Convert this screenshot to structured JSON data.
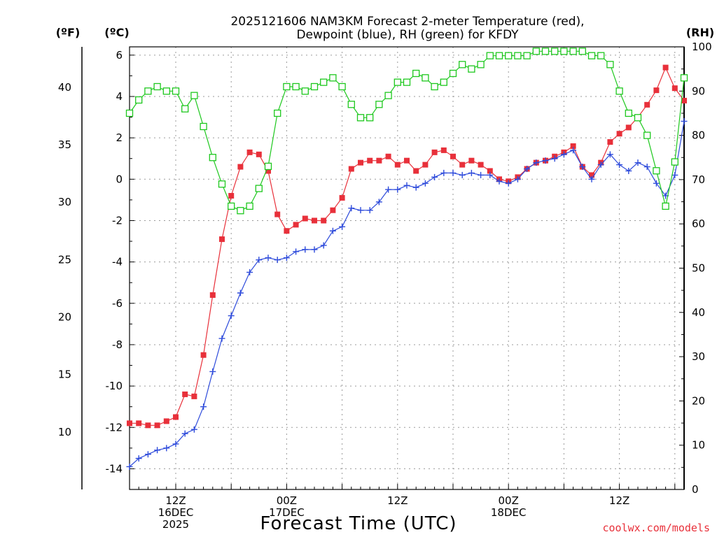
{
  "chart_data": {
    "type": "line",
    "title_line1": "2025121606 NAM3KM Forecast 2-meter Temperature (red),",
    "title_line2": "Dewpoint (blue), RH (green) for KFDY",
    "unit_f": "(ºF)",
    "unit_c": "(ºC)",
    "unit_rh": "(RH)",
    "xlabel": "Forecast Time (UTC)",
    "credit": "coolwx.com/models",
    "x_range_hours": [
      7,
      67
    ],
    "ylim_c": [
      -15,
      6.4
    ],
    "ylim_rh": [
      0,
      100
    ],
    "ylim_f": [
      5,
      43.5
    ],
    "yticks_c": [
      -14,
      -12,
      -10,
      -8,
      -6,
      -4,
      -2,
      0,
      2,
      4,
      6
    ],
    "yticks_f": [
      10,
      15,
      20,
      25,
      30,
      35,
      40
    ],
    "yticks_rh": [
      0,
      10,
      20,
      30,
      40,
      50,
      60,
      70,
      80,
      90,
      100
    ],
    "xticks": [
      {
        "hour": 12,
        "lines": [
          "12Z",
          "16DEC",
          "2025"
        ]
      },
      {
        "hour": 24,
        "lines": [
          "00Z",
          "17DEC"
        ]
      },
      {
        "hour": 36,
        "lines": [
          "12Z"
        ]
      },
      {
        "hour": 48,
        "lines": [
          "00Z",
          "18DEC"
        ]
      },
      {
        "hour": 60,
        "lines": [
          "12Z"
        ]
      }
    ],
    "grid": true,
    "series": [
      {
        "name": "Temperature",
        "units": "degC",
        "color": "#e8303a",
        "marker": "filled-square",
        "start_hour": 7,
        "step_hours": 1,
        "values": [
          -11.8,
          -11.8,
          -11.9,
          -11.9,
          -11.7,
          -11.5,
          -10.4,
          -10.5,
          -8.5,
          -5.6,
          -2.9,
          -0.8,
          0.6,
          1.3,
          1.2,
          0.4,
          -1.7,
          -2.5,
          -2.2,
          -1.9,
          -2.0,
          -2.0,
          -1.5,
          -0.9,
          0.5,
          0.8,
          0.9,
          0.9,
          1.1,
          0.7,
          0.9,
          0.4,
          0.7,
          1.3,
          1.4,
          1.1,
          0.7,
          0.9,
          0.7,
          0.4,
          0.0,
          -0.1,
          0.1,
          0.5,
          0.8,
          0.9,
          1.1,
          1.3,
          1.6,
          0.6,
          0.2,
          0.8,
          1.8,
          2.2,
          2.5,
          3.0,
          3.6,
          4.3,
          5.4,
          4.4,
          3.8
        ]
      },
      {
        "name": "Dewpoint",
        "units": "degC",
        "color": "#2e4bdb",
        "marker": "plus",
        "start_hour": 7,
        "step_hours": 1,
        "values": [
          -13.9,
          -13.5,
          -13.3,
          -13.1,
          -13.0,
          -12.8,
          -12.3,
          -12.1,
          -11.0,
          -9.3,
          -7.7,
          -6.6,
          -5.5,
          -4.5,
          -3.9,
          -3.8,
          -3.9,
          -3.8,
          -3.5,
          -3.4,
          -3.4,
          -3.2,
          -2.5,
          -2.3,
          -1.4,
          -1.5,
          -1.5,
          -1.1,
          -0.5,
          -0.5,
          -0.3,
          -0.4,
          -0.2,
          0.1,
          0.3,
          0.3,
          0.2,
          0.3,
          0.2,
          0.2,
          -0.1,
          -0.2,
          0.0,
          0.5,
          0.8,
          0.9,
          1.0,
          1.2,
          1.4,
          0.6,
          0.0,
          0.7,
          1.2,
          0.7,
          0.4,
          0.8,
          0.6,
          -0.2,
          -0.8,
          0.2,
          2.8
        ]
      },
      {
        "name": "RH",
        "units": "percent",
        "color": "#1ec81e",
        "marker": "open-square",
        "start_hour": 7,
        "step_hours": 1,
        "values": [
          85,
          88,
          90,
          91,
          90,
          90,
          86,
          89,
          82,
          75,
          69,
          64,
          63,
          64,
          68,
          73,
          85,
          91,
          91,
          90,
          91,
          92,
          93,
          91,
          87,
          84,
          84,
          87,
          89,
          92,
          92,
          94,
          93,
          91,
          92,
          94,
          96,
          95,
          96,
          98,
          98,
          98,
          98,
          98,
          99,
          99,
          99,
          99,
          99,
          99,
          98,
          98,
          96,
          90,
          85,
          84,
          80,
          72,
          64,
          74,
          93
        ]
      }
    ]
  }
}
